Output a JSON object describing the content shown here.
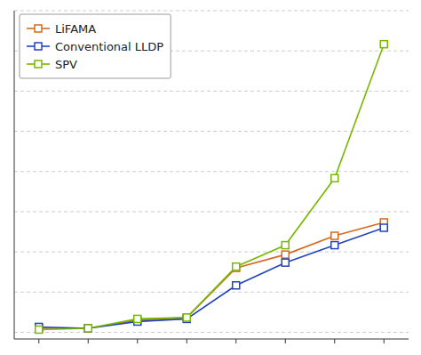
{
  "chart_data": {
    "type": "line",
    "x": [
      1,
      2,
      3,
      4,
      5,
      6,
      7,
      8
    ],
    "series": [
      {
        "name": "LiFAMA",
        "color": "#d4691e",
        "marker": "square",
        "values": [
          0.3,
          0.3,
          0.9,
          1.1,
          4.8,
          5.8,
          7.2,
          8.2
        ]
      },
      {
        "name": "Conventional LLDP",
        "color": "#2244bb",
        "marker": "square",
        "values": [
          0.4,
          0.3,
          0.8,
          1.0,
          3.5,
          5.2,
          6.5,
          7.8
        ]
      },
      {
        "name": "SPV",
        "color": "#78b800",
        "marker": "square",
        "values": [
          0.2,
          0.3,
          1.0,
          1.1,
          4.9,
          6.5,
          11.5,
          21.5
        ]
      }
    ],
    "xlim": [
      0.5,
      8.5
    ],
    "xticks": [
      1,
      2,
      3,
      4,
      5,
      6,
      7,
      8
    ],
    "ylim": [
      -0.5,
      24.0
    ],
    "yticks": [
      0,
      3,
      6,
      9,
      12,
      15,
      18,
      21,
      24
    ],
    "grid": true,
    "legend": "upper left",
    "tick_labels": false
  }
}
